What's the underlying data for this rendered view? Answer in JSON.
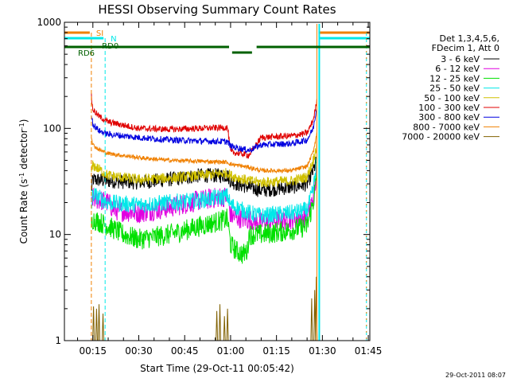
{
  "chart_data": {
    "type": "line",
    "title": "HESSI Observing Summary Count Rates",
    "xlabel": "Start Time (29-Oct-11 00:05:42)",
    "ylabel_main": "Count Rate (s",
    "ylabel_exp1": "-1",
    "ylabel_mid": " detector",
    "ylabel_exp2": "-1",
    "ylabel_end": ")",
    "yscale": "log",
    "ylim": [
      1,
      1000
    ],
    "xlim_minutes": [
      5.7,
      105.5
    ],
    "x_ticks": [
      {
        "label": "00:15",
        "value": 15
      },
      {
        "label": "00:30",
        "value": 30
      },
      {
        "label": "00:45",
        "value": 45
      },
      {
        "label": "01:00",
        "value": 60
      },
      {
        "label": "01:15",
        "value": 75
      },
      {
        "label": "01:30",
        "value": 90
      },
      {
        "label": "01:45",
        "value": 105
      }
    ],
    "y_ticks": [
      {
        "label": "1",
        "value": 1
      },
      {
        "label": "10",
        "value": 10
      },
      {
        "label": "100",
        "value": 100
      },
      {
        "label": "1000",
        "value": 1000
      }
    ],
    "legend_header": [
      "Det 1,3,4,5,6,",
      "FDecim 1, Att 0"
    ],
    "data_start_minute": 14.5,
    "data_end_minute": 88.2,
    "series": [
      {
        "name": "3 - 6 keV",
        "color": "#000000",
        "noise": 0.07,
        "points": [
          [
            14.5,
            26
          ],
          [
            15,
            33
          ],
          [
            20,
            32
          ],
          [
            30,
            31
          ],
          [
            40,
            33
          ],
          [
            50,
            36
          ],
          [
            59,
            36
          ],
          [
            60,
            32
          ],
          [
            62,
            30
          ],
          [
            70,
            26
          ],
          [
            80,
            28
          ],
          [
            85,
            30
          ],
          [
            87,
            40
          ],
          [
            88.2,
            50
          ]
        ]
      },
      {
        "name": "6 - 12 keV",
        "color": "#e000e0",
        "noise": 0.1,
        "points": [
          [
            14.5,
            18
          ],
          [
            15,
            22
          ],
          [
            20,
            20
          ],
          [
            22,
            17
          ],
          [
            30,
            16
          ],
          [
            40,
            18
          ],
          [
            50,
            21
          ],
          [
            59,
            23
          ],
          [
            60,
            15
          ],
          [
            70,
            13
          ],
          [
            80,
            14
          ],
          [
            85,
            15
          ],
          [
            87,
            22
          ],
          [
            88.2,
            38
          ]
        ]
      },
      {
        "name": "12 - 25 keV",
        "color": "#00e000",
        "noise": 0.1,
        "points": [
          [
            14.5,
            12
          ],
          [
            15,
            14
          ],
          [
            20,
            12
          ],
          [
            25,
            10
          ],
          [
            30,
            9
          ],
          [
            40,
            10
          ],
          [
            50,
            12
          ],
          [
            59,
            14
          ],
          [
            60,
            8
          ],
          [
            62,
            7
          ],
          [
            64,
            6.5
          ],
          [
            65.5,
            7
          ],
          [
            66,
            10
          ],
          [
            70,
            10
          ],
          [
            80,
            11
          ],
          [
            85,
            12
          ],
          [
            87,
            20
          ],
          [
            88.2,
            35
          ]
        ]
      },
      {
        "name": "25 - 50 keV",
        "color": "#00e8e8",
        "noise": 0.08,
        "points": [
          [
            14.5,
            18
          ],
          [
            15,
            24
          ],
          [
            20,
            20
          ],
          [
            30,
            19
          ],
          [
            40,
            20
          ],
          [
            50,
            21
          ],
          [
            59,
            23
          ],
          [
            60,
            19
          ],
          [
            66,
            16
          ],
          [
            70,
            15
          ],
          [
            80,
            16
          ],
          [
            85,
            17
          ],
          [
            87,
            26
          ],
          [
            88.2,
            50
          ]
        ]
      },
      {
        "name": "50 - 100 keV",
        "color": "#d0c000",
        "noise": 0.05,
        "points": [
          [
            14.5,
            38
          ],
          [
            15,
            45
          ],
          [
            20,
            36
          ],
          [
            30,
            33
          ],
          [
            40,
            34
          ],
          [
            50,
            36
          ],
          [
            59,
            38
          ],
          [
            60,
            36
          ],
          [
            66,
            32
          ],
          [
            70,
            31
          ],
          [
            80,
            32
          ],
          [
            85,
            35
          ],
          [
            87,
            50
          ],
          [
            88.2,
            70
          ]
        ]
      },
      {
        "name": "100 - 300 keV",
        "color": "#e00000",
        "noise": 0.03,
        "points": [
          [
            14.5,
            200
          ],
          [
            15,
            150
          ],
          [
            17,
            130
          ],
          [
            20,
            115
          ],
          [
            30,
            100
          ],
          [
            40,
            98
          ],
          [
            50,
            100
          ],
          [
            59,
            102
          ],
          [
            60,
            60
          ],
          [
            66,
            56
          ],
          [
            70,
            82
          ],
          [
            80,
            85
          ],
          [
            85,
            90
          ],
          [
            87,
            120
          ],
          [
            88.2,
            180
          ]
        ]
      },
      {
        "name": "300 - 800 keV",
        "color": "#0000e0",
        "noise": 0.03,
        "points": [
          [
            14.5,
            140
          ],
          [
            15,
            110
          ],
          [
            17,
            95
          ],
          [
            20,
            88
          ],
          [
            30,
            82
          ],
          [
            40,
            78
          ],
          [
            50,
            76
          ],
          [
            59,
            75
          ],
          [
            60,
            68
          ],
          [
            66,
            62
          ],
          [
            70,
            70
          ],
          [
            80,
            72
          ],
          [
            85,
            78
          ],
          [
            87,
            100
          ],
          [
            88.2,
            160
          ]
        ]
      },
      {
        "name": "800 - 7000 keV",
        "color": "#f08000",
        "noise": 0.02,
        "points": [
          [
            14.5,
            85
          ],
          [
            15,
            70
          ],
          [
            17,
            63
          ],
          [
            20,
            58
          ],
          [
            30,
            53
          ],
          [
            40,
            50
          ],
          [
            50,
            49
          ],
          [
            59,
            48
          ],
          [
            60,
            46
          ],
          [
            66,
            43
          ],
          [
            70,
            40
          ],
          [
            80,
            40
          ],
          [
            85,
            44
          ],
          [
            87,
            60
          ],
          [
            88.2,
            90
          ]
        ]
      },
      {
        "name": "7000 - 20000 keV",
        "color": "#806000",
        "noise": 0,
        "points": [
          [
            14.5,
            1
          ],
          [
            88.2,
            1
          ]
        ]
      }
    ],
    "flag_annotations": [
      {
        "label": "SI",
        "color": "#f08000"
      },
      {
        "label": "N",
        "color": "#00e8e8"
      },
      {
        "label": "RD0",
        "color": "#006000"
      },
      {
        "label": "RD6",
        "color": "#006000"
      }
    ],
    "timestamp": "29-Oct-2011 08:07"
  }
}
